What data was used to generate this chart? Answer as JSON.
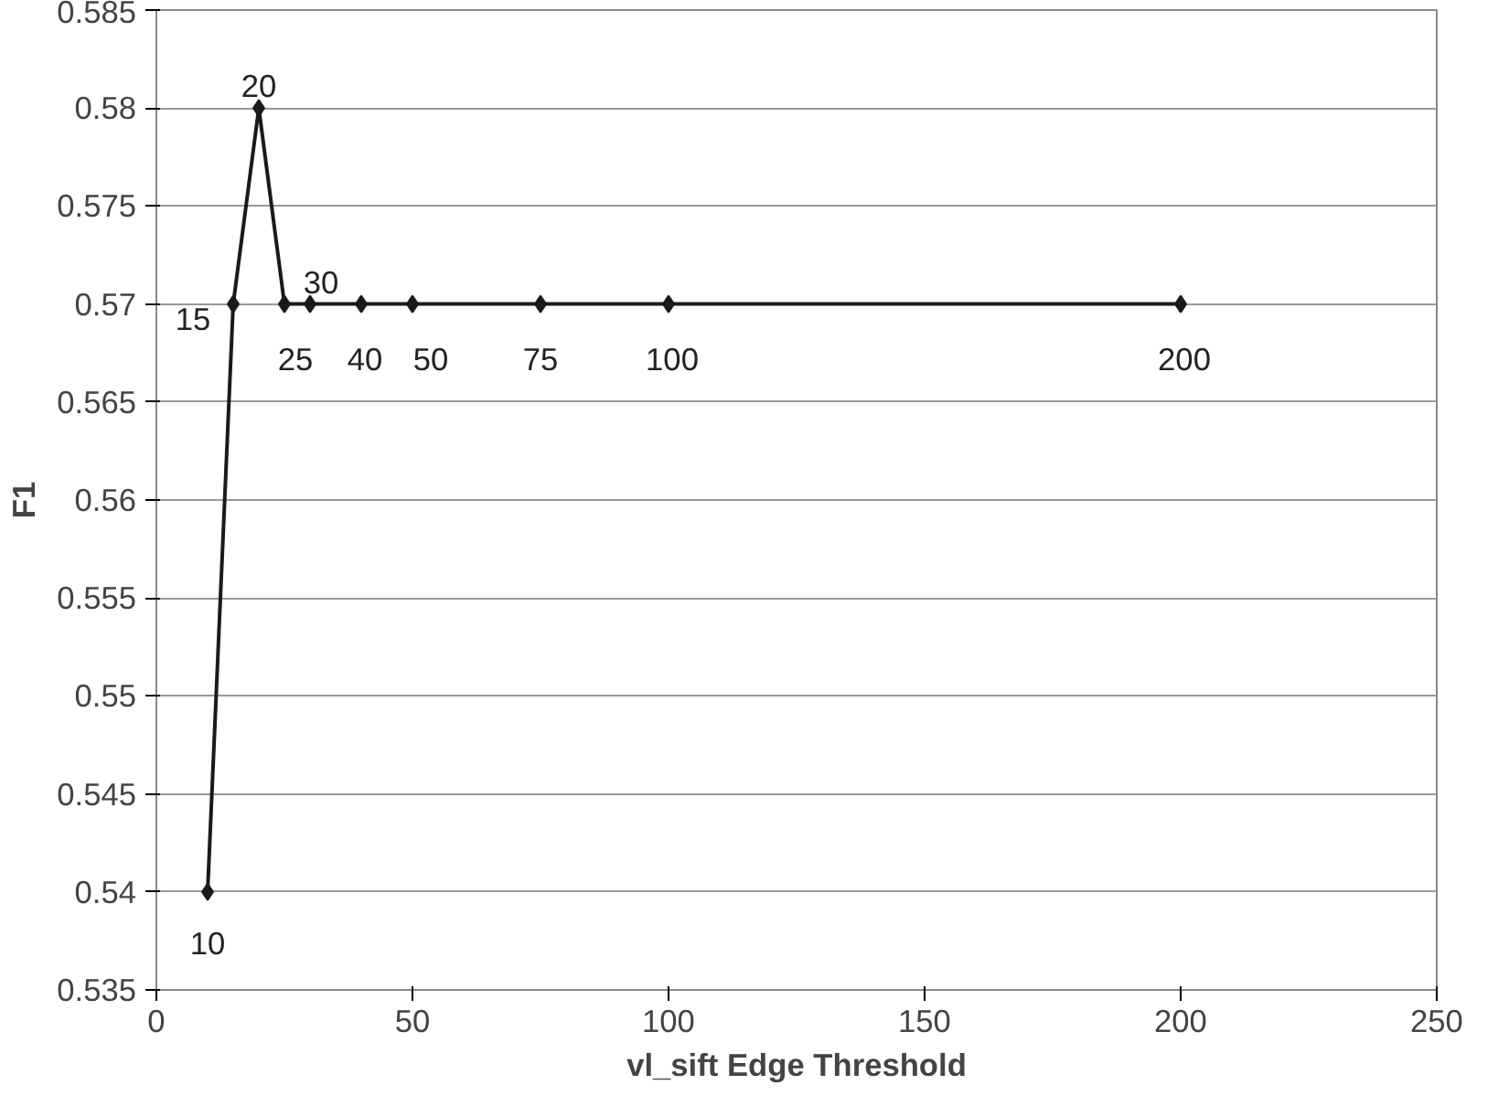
{
  "chart_data": {
    "type": "line",
    "xlabel": "vl_sift Edge Threshold",
    "ylabel": "F1",
    "x": [
      10,
      15,
      20,
      25,
      30,
      40,
      50,
      75,
      100,
      200
    ],
    "series": [
      {
        "color": "#1a1a1a",
        "values": [
          0.54,
          0.57,
          0.58,
          0.57,
          0.57,
          0.57,
          0.57,
          0.57,
          0.57,
          0.57
        ]
      }
    ],
    "xlim": [
      0,
      250
    ],
    "xticks": [
      0,
      50,
      100,
      150,
      200,
      250
    ],
    "ylim": [
      0.535,
      0.585
    ],
    "yticks": [
      0.535,
      0.54,
      0.545,
      0.55,
      0.555,
      0.56,
      0.565,
      0.57,
      0.575,
      0.58,
      0.585
    ],
    "grid": "y",
    "marker": "diamond",
    "line_style": "solid",
    "annotations": [
      {
        "text": "10",
        "x": 10,
        "y": 0.54
      },
      {
        "text": "15",
        "x": 15,
        "y": 0.57
      },
      {
        "text": "20",
        "x": 20,
        "y": 0.58
      },
      {
        "text": "25",
        "x": 25,
        "y": 0.57
      },
      {
        "text": "30",
        "x": 30,
        "y": 0.57
      },
      {
        "text": "40",
        "x": 40,
        "y": 0.57
      },
      {
        "text": "50",
        "x": 50,
        "y": 0.57
      },
      {
        "text": "75",
        "x": 75,
        "y": 0.57
      },
      {
        "text": "100",
        "x": 100,
        "y": 0.57
      },
      {
        "text": "200",
        "x": 200,
        "y": 0.57
      }
    ]
  }
}
